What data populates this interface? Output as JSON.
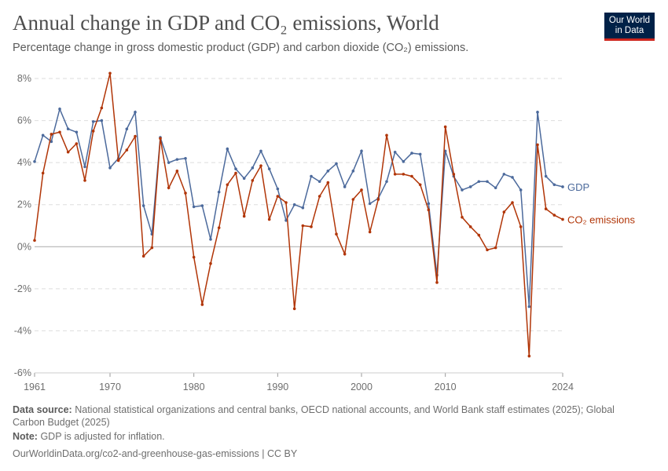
{
  "header": {
    "title": "Annual change in GDP and CO₂ emissions, World",
    "subtitle": "Percentage change in gross domestic product (GDP) and carbon dioxide (CO₂) emissions.",
    "logo_text": "Our World in Data"
  },
  "footer": {
    "source_label": "Data source:",
    "source_text": "National statistical organizations and central banks, OECD national accounts, and World Bank staff estimates (2025); Global Carbon Budget (2025)",
    "note_label": "Note:",
    "note_text": "GDP is adjusted for inflation.",
    "url": "OurWorldinData.org/co2-and-greenhouse-gas-emissions | CC BY"
  },
  "chart_data": {
    "type": "line",
    "title": "Annual change in GDP and CO₂ emissions, World",
    "xlim": [
      1961,
      2024
    ],
    "ylim": [
      -6,
      8
    ],
    "x_ticks": [
      1961,
      1970,
      1980,
      1990,
      2000,
      2010,
      2024
    ],
    "y_ticks": [
      -6,
      -4,
      -2,
      0,
      2,
      4,
      6,
      8
    ],
    "y_tick_labels": [
      "-6%",
      "-4%",
      "-2%",
      "0%",
      "2%",
      "4%",
      "6%",
      "8%"
    ],
    "grid": "horizontal dashed",
    "legend": "right (line-end labels)",
    "x": [
      1961,
      1962,
      1963,
      1964,
      1965,
      1966,
      1967,
      1968,
      1969,
      1970,
      1971,
      1972,
      1973,
      1974,
      1975,
      1976,
      1977,
      1978,
      1979,
      1980,
      1981,
      1982,
      1983,
      1984,
      1985,
      1986,
      1987,
      1988,
      1989,
      1990,
      1991,
      1992,
      1993,
      1994,
      1995,
      1996,
      1997,
      1998,
      1999,
      2000,
      2001,
      2002,
      2003,
      2004,
      2005,
      2006,
      2007,
      2008,
      2009,
      2010,
      2011,
      2012,
      2013,
      2014,
      2015,
      2016,
      2017,
      2018,
      2019,
      2020,
      2021,
      2022,
      2023,
      2024
    ],
    "series": [
      {
        "name": "GDP",
        "color": "#4c6a9c",
        "values": [
          4.05,
          5.3,
          5.0,
          6.55,
          5.6,
          5.45,
          3.8,
          5.95,
          6.0,
          3.75,
          4.2,
          5.6,
          6.4,
          1.95,
          0.6,
          5.2,
          4.0,
          4.15,
          4.2,
          1.9,
          1.95,
          0.35,
          2.6,
          4.65,
          3.7,
          3.25,
          3.75,
          4.55,
          3.7,
          2.75,
          1.25,
          2.0,
          1.85,
          3.35,
          3.1,
          3.6,
          3.95,
          2.85,
          3.6,
          4.55,
          2.05,
          2.3,
          3.1,
          4.5,
          4.05,
          4.45,
          4.4,
          2.05,
          -1.35,
          4.55,
          3.35,
          2.7,
          2.85,
          3.1,
          3.1,
          2.8,
          3.45,
          3.3,
          2.7,
          -2.85,
          6.4,
          3.35,
          2.95,
          2.85
        ]
      },
      {
        "name": "CO₂ emissions",
        "color": "#b13507",
        "values": [
          0.3,
          3.5,
          5.35,
          5.45,
          4.5,
          4.9,
          3.15,
          5.5,
          6.6,
          8.25,
          4.1,
          4.6,
          5.25,
          -0.45,
          -0.05,
          5.15,
          2.8,
          3.6,
          2.55,
          -0.5,
          -2.75,
          -0.8,
          0.9,
          2.95,
          3.5,
          1.45,
          3.15,
          3.85,
          1.3,
          2.4,
          2.1,
          -2.95,
          1.0,
          0.95,
          2.4,
          3.05,
          0.6,
          -0.35,
          2.25,
          2.7,
          0.7,
          2.25,
          5.3,
          3.45,
          3.45,
          3.35,
          2.95,
          1.75,
          -1.7,
          5.7,
          3.45,
          1.4,
          0.95,
          0.55,
          -0.15,
          -0.05,
          1.65,
          2.1,
          0.95,
          -5.2,
          4.85,
          1.8,
          1.5,
          1.3
        ]
      }
    ]
  }
}
